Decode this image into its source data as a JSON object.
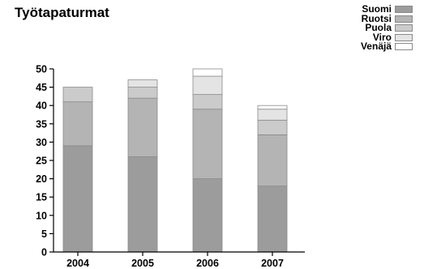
{
  "chart_data": {
    "type": "bar",
    "stacked": true,
    "title": "Työtapaturmat",
    "categories": [
      "2004",
      "2005",
      "2006",
      "2007"
    ],
    "series": [
      {
        "name": "Suomi",
        "color": "#9c9c9c",
        "values": [
          29,
          26,
          20,
          18
        ]
      },
      {
        "name": "Ruotsi",
        "color": "#b4b4b4",
        "values": [
          12,
          16,
          19,
          14
        ]
      },
      {
        "name": "Puola",
        "color": "#cbcbcb",
        "values": [
          4,
          3,
          4,
          4
        ]
      },
      {
        "name": "Viro",
        "color": "#e4e4e4",
        "values": [
          0,
          2,
          5,
          3
        ]
      },
      {
        "name": "Venäjä",
        "color": "#ffffff",
        "values": [
          0,
          0,
          2,
          1
        ]
      }
    ],
    "ylim": [
      0,
      50
    ],
    "yticks": [
      0,
      5,
      10,
      15,
      20,
      25,
      30,
      35,
      40,
      45,
      50
    ],
    "legend_position": "top-right",
    "grid": false
  }
}
